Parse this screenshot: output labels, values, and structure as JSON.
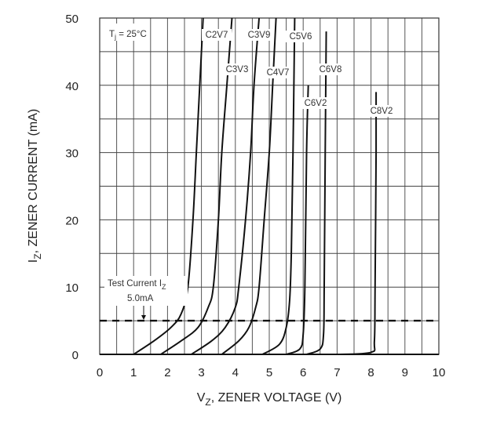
{
  "chart_data": {
    "type": "line",
    "title": "",
    "xlabel": "V_Z, ZENER VOLTAGE (V)",
    "xlabel_main": "V",
    "xlabel_sub": "Z",
    "xlabel_rest": ", ZENER VOLTAGE (V)",
    "ylabel": "I_Z, ZENER CURRENT (mA)",
    "ylabel_main": "I",
    "ylabel_sub": "Z",
    "ylabel_rest": ", ZENER CURRENT (mA)",
    "xlim": [
      0,
      10
    ],
    "ylim": [
      0,
      50
    ],
    "x_ticks": [
      "0",
      "1",
      "2",
      "3",
      "4",
      "5",
      "6",
      "7",
      "8",
      "9",
      "10"
    ],
    "y_ticks": [
      "0",
      "10",
      "20",
      "30",
      "40",
      "50"
    ],
    "grid": true,
    "legend_position": "none (inline curve labels)",
    "annotations": {
      "temperature_main": "T",
      "temperature_sub": "j",
      "temperature_rest": " = 25°C",
      "test_current_line1_main": "Test Current I",
      "test_current_line1_sub": "Z",
      "test_current_line2": "5.0mA",
      "test_current_value_mA": 5.0
    },
    "series": [
      {
        "name": "C2V7",
        "points": [
          [
            1.0,
            0
          ],
          [
            1.6,
            2
          ],
          [
            2.1,
            4
          ],
          [
            2.4,
            6
          ],
          [
            2.6,
            10
          ],
          [
            2.75,
            20
          ],
          [
            2.85,
            30
          ],
          [
            2.95,
            40
          ],
          [
            3.05,
            50
          ]
        ]
      },
      {
        "name": "C3V3",
        "points": [
          [
            1.8,
            0
          ],
          [
            2.4,
            2
          ],
          [
            2.9,
            4
          ],
          [
            3.2,
            7
          ],
          [
            3.35,
            10
          ],
          [
            3.5,
            20
          ],
          [
            3.6,
            30
          ],
          [
            3.75,
            40
          ],
          [
            3.9,
            50
          ]
        ]
      },
      {
        "name": "C3V9",
        "points": [
          [
            2.7,
            0
          ],
          [
            3.3,
            2
          ],
          [
            3.7,
            4
          ],
          [
            4.0,
            7
          ],
          [
            4.1,
            10
          ],
          [
            4.3,
            20
          ],
          [
            4.45,
            30
          ],
          [
            4.55,
            40
          ],
          [
            4.7,
            50
          ]
        ]
      },
      {
        "name": "C4V7",
        "points": [
          [
            3.6,
            0
          ],
          [
            4.1,
            2
          ],
          [
            4.4,
            4
          ],
          [
            4.6,
            7
          ],
          [
            4.7,
            10
          ],
          [
            4.85,
            20
          ],
          [
            5.0,
            30
          ],
          [
            5.1,
            40
          ],
          [
            5.2,
            50
          ]
        ]
      },
      {
        "name": "C5V6",
        "points": [
          [
            4.8,
            0
          ],
          [
            5.3,
            1.5
          ],
          [
            5.5,
            4
          ],
          [
            5.6,
            8
          ],
          [
            5.65,
            15
          ],
          [
            5.7,
            30
          ],
          [
            5.75,
            50
          ]
        ]
      },
      {
        "name": "C6V2",
        "points": [
          [
            5.5,
            0
          ],
          [
            5.9,
            0.8
          ],
          [
            6.0,
            3
          ],
          [
            6.05,
            10
          ],
          [
            6.1,
            30
          ],
          [
            6.15,
            40
          ]
        ]
      },
      {
        "name": "C6V8",
        "points": [
          [
            6.1,
            0
          ],
          [
            6.5,
            0.8
          ],
          [
            6.6,
            3
          ],
          [
            6.62,
            10
          ],
          [
            6.65,
            30
          ],
          [
            6.68,
            48
          ]
        ]
      },
      {
        "name": "C8V2",
        "points": [
          [
            7.0,
            0
          ],
          [
            8.0,
            0.3
          ],
          [
            8.1,
            2
          ],
          [
            8.12,
            10
          ],
          [
            8.15,
            30
          ],
          [
            8.15,
            39
          ]
        ]
      }
    ],
    "test_current_line": {
      "y_mA": 5.0,
      "style": "dashed"
    }
  }
}
